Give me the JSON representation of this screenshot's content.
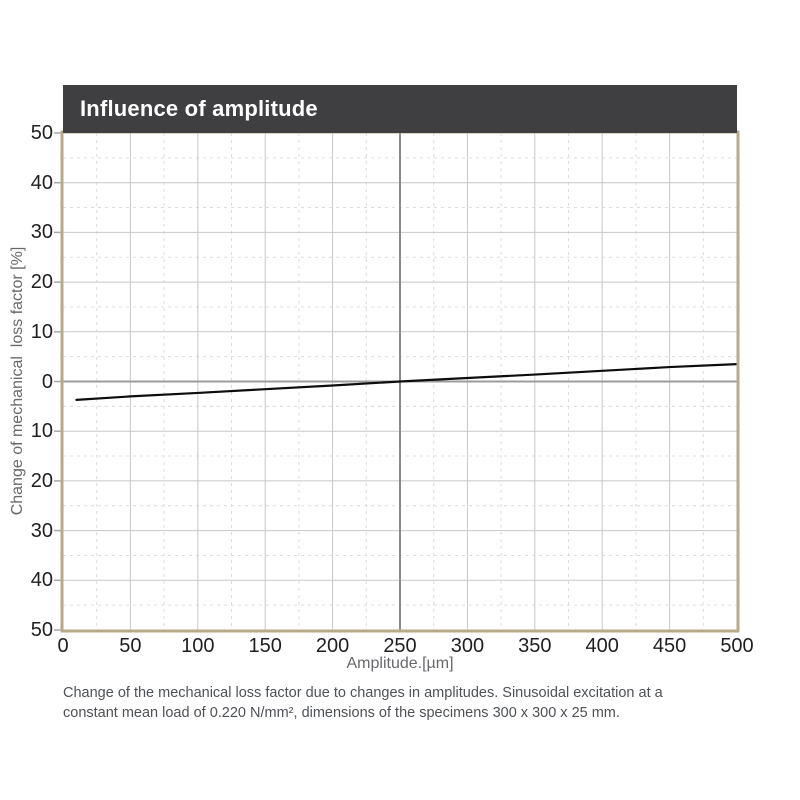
{
  "header": {
    "title": "Influence of amplitude"
  },
  "chart_data": {
    "type": "line",
    "title": "Influence of amplitude",
    "xlabel": "Amplitude.[µm]",
    "ylabel": "Change of mechanical  loss factor [%]",
    "xlim": [
      0,
      500
    ],
    "ylim": [
      -50,
      50
    ],
    "x_major_step": 50,
    "x_minor_step": 25,
    "y_major_step": 10,
    "y_minor_step": 5,
    "grid": "major solid, minor dashed",
    "legend": "none",
    "highlight_x": 250,
    "xticks": [
      {
        "v": 0,
        "t": "0"
      },
      {
        "v": 50,
        "t": "50"
      },
      {
        "v": 100,
        "t": "100"
      },
      {
        "v": 150,
        "t": "150"
      },
      {
        "v": 200,
        "t": "200"
      },
      {
        "v": 250,
        "t": "250"
      },
      {
        "v": 300,
        "t": "300"
      },
      {
        "v": 350,
        "t": "350"
      },
      {
        "v": 400,
        "t": "400"
      },
      {
        "v": 450,
        "t": "450"
      },
      {
        "v": 500,
        "t": "500"
      }
    ],
    "yticks": [
      {
        "v": 50,
        "t": "50"
      },
      {
        "v": 40,
        "t": "40"
      },
      {
        "v": 30,
        "t": "30"
      },
      {
        "v": 20,
        "t": "20"
      },
      {
        "v": 10,
        "t": "10"
      },
      {
        "v": 0,
        "t": "0"
      },
      {
        "v": -10,
        "t": "10"
      },
      {
        "v": -20,
        "t": "20"
      },
      {
        "v": -30,
        "t": "30"
      },
      {
        "v": -40,
        "t": "40"
      },
      {
        "v": -50,
        "t": "50"
      }
    ],
    "series": [
      {
        "name": "change-of-mechanical-loss-factor",
        "x": [
          10,
          50,
          100,
          150,
          200,
          250,
          300,
          350,
          400,
          450,
          500
        ],
        "y": [
          -3.7,
          -3.0,
          -2.3,
          -1.55,
          -0.8,
          0.0,
          0.7,
          1.4,
          2.15,
          2.9,
          3.5
        ]
      }
    ]
  },
  "caption": {
    "lines": [
      "Change of the mechanical loss factor due to changes in amplitudes. Sinusoidal excitation at a",
      "constant mean load of 0.220 N/mm², dimensions of the specimens 300 x 300 x 25 mm."
    ]
  },
  "colors": {
    "background": "#ffffff",
    "header_bg": "#3f3e40",
    "header_text": "#ffffff",
    "border": "#b9aa87",
    "grid_major": "#c8c8c8",
    "grid_minor": "#dcdcdc",
    "zero_line": "#9c9c9c",
    "highlight_line": "#8a8a8a",
    "curve": "#0d0d0d",
    "tick_mark": "#a8a8a8",
    "tick_text": "#1f1f1f",
    "axis_title_text": "#67696c",
    "caption_text": "#4e5155"
  }
}
